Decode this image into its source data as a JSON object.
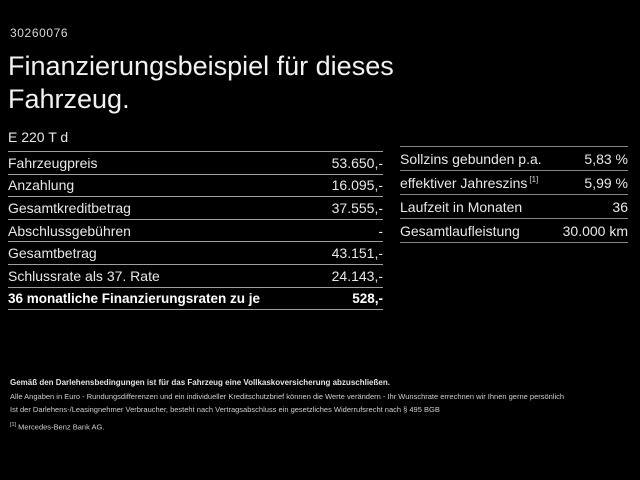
{
  "colors": {
    "background": "#000000",
    "text": "#e8e8e8",
    "text_bold": "#ffffff",
    "rule_left": "#9e9e9e",
    "rule_right": "#858585"
  },
  "header": {
    "document_number": "30260076",
    "title": "Finanzierungsbeispiel für dieses Fahrzeug.",
    "model": "E 220 T d"
  },
  "left_table": {
    "rows": [
      {
        "label": "Fahrzeugpreis",
        "value": "53.650,-"
      },
      {
        "label": "Anzahlung",
        "value": "16.095,-"
      },
      {
        "label": "Gesamtkreditbetrag",
        "value": "37.555,-"
      },
      {
        "label": "Abschlussgebühren",
        "value": "-"
      },
      {
        "label": "Gesamtbetrag",
        "value": "43.151,-"
      },
      {
        "label": "Schlussrate als 37. Rate",
        "value": "24.143,-"
      },
      {
        "label": "36 monatliche Finanzierungsraten zu je",
        "value": "528,-"
      }
    ]
  },
  "right_table": {
    "footnote_marker": "[1]",
    "rows": [
      {
        "label": "Sollzins gebunden p.a.",
        "value": "5,83 %"
      },
      {
        "label": "effektiver Jahreszins",
        "value": "5,99 %"
      },
      {
        "label": "Laufzeit in Monaten",
        "value": "36"
      },
      {
        "label": "Gesamtlaufleistung",
        "value": "30.000 km"
      }
    ]
  },
  "footer": {
    "line1": "Gemäß den Darlehensbedingungen ist für das Fahrzeug eine Vollkaskoversicherung abzuschließen.",
    "line2": "Alle Angaben in Euro - Rundungsdifferenzen und ein individueller Kreditschutzbrief können die Werte verändern - Ihr Wunschrate errechnen wir Ihnen gerne persönlich",
    "line3": "Ist der Darlehens-/Leasingnehmer Verbraucher, besteht nach Vertragsabschluss ein gesetzliches Widerrufsrecht nach § 495 BGB",
    "footnote_marker": "[1]",
    "footnote_text": "Mercedes-Benz Bank AG."
  }
}
